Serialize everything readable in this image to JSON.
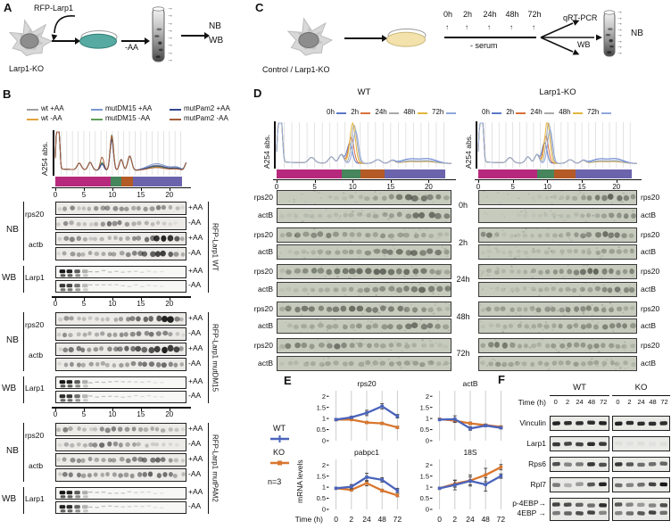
{
  "panels": {
    "A": {
      "label": "A",
      "transgene": "RFP-Larp1",
      "cell": "Larp1-KO",
      "treatment": "-AA",
      "outputs": [
        "NB",
        "WB"
      ]
    },
    "C": {
      "label": "C",
      "cell": "Control / Larp1-KO",
      "timepoints": [
        "0h",
        "2h",
        "24h",
        "48h",
        "72h"
      ],
      "treatment": "- serum",
      "branch_top": "qRT-PCR",
      "branch_bottom": "WB",
      "output": "NB"
    },
    "B": {
      "label": "B",
      "yaxis": "A254 abs.",
      "xticks": [
        "0",
        "5",
        "10",
        "15",
        "20"
      ],
      "legend": [
        {
          "label": "wt +AA",
          "color": "#9f9f9f"
        },
        {
          "label": "wt  -AA",
          "color": "#e2a33b"
        },
        {
          "label": "mutDM15 +AA",
          "color": "#7b97d3"
        },
        {
          "label": "mutDM15  -AA",
          "color": "#5f9e59"
        },
        {
          "label": "mutPam2 +AA",
          "color": "#35488e"
        },
        {
          "label": "mutPam2  -AA",
          "color": "#a55c37"
        }
      ],
      "fraction_colors": [
        "#b7297c",
        "#47855c",
        "#b35a26",
        "#6b64ad"
      ],
      "nb": "NB",
      "wb": "WB",
      "plus": "+AA",
      "minus": "-AA",
      "probe_rps20": "rps20",
      "probe_actb": "actb",
      "probe_larp1": "Larp1",
      "groups": [
        {
          "name": "RFP-Larp1 WT"
        },
        {
          "name": "RFP-Larp1 mutDM15"
        },
        {
          "name": "RFP-Larp1 mutPAM2"
        }
      ]
    },
    "D": {
      "label": "D",
      "titles": [
        "WT",
        "Larp1-KO"
      ],
      "yaxis": "A254 abs.",
      "xticks": [
        "0",
        "5",
        "10",
        "15",
        "20"
      ],
      "legend": [
        {
          "label": "0h",
          "color": "#5b79c9"
        },
        {
          "label": "2h",
          "color": "#d9703a"
        },
        {
          "label": "24h",
          "color": "#a9a9a9"
        },
        {
          "label": "48h",
          "color": "#e3b63e"
        },
        {
          "label": "72h",
          "color": "#8fa8dc"
        }
      ],
      "fraction_colors": [
        "#b7297c",
        "#47855c",
        "#b35a26",
        "#6b64ad"
      ],
      "timepoints": [
        "0h",
        "2h",
        "24h",
        "48h",
        "72h"
      ],
      "probe_top": "rps20",
      "probe_bottom": "actB"
    },
    "E": {
      "label": "E",
      "ylabel": "mRNA levels",
      "xlabel": "Time (h)",
      "xticklabels": [
        "0",
        "2",
        "24",
        "48",
        "72"
      ],
      "legend": {
        "wt": "WT",
        "ko": "KO",
        "n": "n=3"
      },
      "colors": {
        "wt": "#4b64bb",
        "ko": "#d9772f"
      }
    },
    "F": {
      "label": "F",
      "titles": [
        "WT",
        "KO"
      ],
      "time_label": "Time (h)",
      "times": [
        "0",
        "2",
        "24",
        "48",
        "72"
      ],
      "rows": [
        "Vinculin",
        "Larp1",
        "Rps6",
        "Rpl7"
      ],
      "row5a": "p-4EBP→",
      "row5b": "4EBP →"
    }
  },
  "chart_data": [
    {
      "type": "line",
      "title": "rps20",
      "xlabel": "Time (h)",
      "ylabel": "mRNA levels",
      "x": [
        0,
        2,
        24,
        48,
        72
      ],
      "ylim": [
        0,
        2.25
      ],
      "yticks": [
        0,
        0.5,
        1,
        1.5,
        2
      ],
      "series": [
        {
          "name": "WT",
          "color": "#4b64bb",
          "values": [
            0.95,
            1.05,
            1.25,
            1.55,
            1.1
          ],
          "err": [
            0.05,
            0.06,
            0.12,
            0.12,
            0.08
          ]
        },
        {
          "name": "KO",
          "color": "#d9772f",
          "values": [
            0.95,
            0.95,
            0.82,
            0.78,
            0.6
          ],
          "err": [
            0.04,
            0.04,
            0.05,
            0.05,
            0.05
          ]
        }
      ]
    },
    {
      "type": "line",
      "title": "actB",
      "xlabel": "Time (h)",
      "ylabel": "mRNA levels",
      "x": [
        0,
        2,
        24,
        48,
        72
      ],
      "ylim": [
        0,
        2.25
      ],
      "yticks": [
        0,
        0.5,
        1,
        1.5,
        2
      ],
      "series": [
        {
          "name": "WT",
          "color": "#4b64bb",
          "values": [
            0.95,
            0.97,
            0.55,
            0.68,
            0.58
          ],
          "err": [
            0.04,
            0.15,
            0.08,
            0.05,
            0.05
          ]
        },
        {
          "name": "KO",
          "color": "#d9772f",
          "values": [
            0.97,
            0.9,
            0.78,
            0.7,
            0.62
          ],
          "err": [
            0.04,
            0.05,
            0.06,
            0.05,
            0.05
          ]
        }
      ]
    },
    {
      "type": "line",
      "title": "pabpc1",
      "xlabel": "Time (h)",
      "ylabel": "mRNA levels",
      "x": [
        0,
        2,
        24,
        48,
        72
      ],
      "ylim": [
        0,
        2.25
      ],
      "yticks": [
        0,
        0.5,
        1,
        1.5,
        2
      ],
      "series": [
        {
          "name": "WT",
          "color": "#4b64bb",
          "values": [
            0.95,
            1.02,
            1.45,
            1.33,
            0.85
          ],
          "err": [
            0.04,
            0.1,
            0.18,
            0.1,
            0.1
          ]
        },
        {
          "name": "KO",
          "color": "#d9772f",
          "values": [
            0.95,
            0.88,
            1.18,
            0.85,
            0.63
          ],
          "err": [
            0.04,
            0.06,
            0.12,
            0.06,
            0.06
          ]
        }
      ]
    },
    {
      "type": "line",
      "title": "18S",
      "xlabel": "Time (h)",
      "ylabel": "mRNA levels",
      "x": [
        0,
        2,
        24,
        48,
        72
      ],
      "ylim": [
        0,
        2.25
      ],
      "yticks": [
        0,
        0.5,
        1,
        1.5,
        2
      ],
      "series": [
        {
          "name": "WT",
          "color": "#4b64bb",
          "values": [
            0.95,
            1.1,
            1.28,
            1.12,
            1.5
          ],
          "err": [
            0.04,
            0.22,
            0.18,
            0.3,
            0.1
          ]
        },
        {
          "name": "KO",
          "color": "#d9772f",
          "values": [
            0.95,
            1.15,
            1.3,
            1.55,
            1.9
          ],
          "err": [
            0.04,
            0.15,
            0.25,
            0.3,
            0.12
          ]
        }
      ]
    },
    {
      "type": "line",
      "title": "Panel B polysome profile",
      "ylabel": "A254 abs.",
      "x_range": [
        0,
        23
      ],
      "xticks": [
        0,
        5,
        10,
        15,
        20
      ],
      "grid": "vertical",
      "series_names": [
        "wt +AA",
        "wt -AA",
        "mutDM15 +AA",
        "mutDM15 -AA",
        "mutPam2 +AA",
        "mutPam2 -AA"
      ]
    },
    {
      "type": "line",
      "title": "Panel D polysome profiles (WT, Larp1-KO)",
      "ylabel": "A254 abs.",
      "x_range": [
        0,
        23
      ],
      "xticks": [
        0,
        5,
        10,
        15,
        20
      ],
      "grid": "vertical",
      "series_names": [
        "0h",
        "2h",
        "24h",
        "48h",
        "72h"
      ]
    }
  ]
}
